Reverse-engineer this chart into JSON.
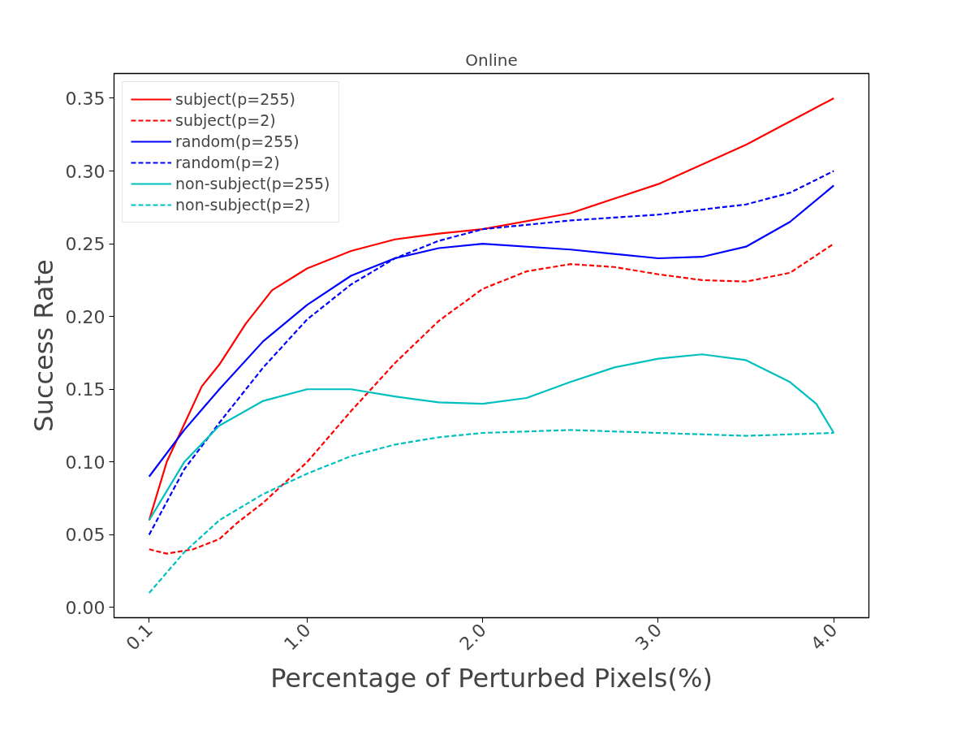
{
  "chart_data": {
    "type": "line",
    "title": "Online",
    "xlabel": "Percentage of Perturbed Pixels(%)",
    "ylabel": "Success Rate",
    "xlim": [
      -0.1,
      4.2
    ],
    "ylim": [
      -0.007,
      0.367
    ],
    "xticks": [
      0.1,
      {
        "value": 1,
        "label": "1.0"
      },
      {
        "value": 2,
        "label": "2.0"
      },
      {
        "value": 3,
        "label": "3.0"
      },
      {
        "value": 4,
        "label": "4.0"
      }
    ],
    "yticks": [
      {
        "value": 0,
        "label": "0.00"
      },
      0.05,
      {
        "value": 0.1,
        "label": "0.10"
      },
      0.15,
      {
        "value": 0.2,
        "label": "0.20"
      },
      0.25,
      {
        "value": 0.3,
        "label": "0.30"
      },
      0.35
    ],
    "grid": false,
    "legend": "top left",
    "series": [
      {
        "name": "subject(p=255)",
        "color": "#ff0000",
        "line_style": "solid",
        "x": [
          0.1,
          0.2,
          0.4,
          0.5,
          0.65,
          0.8,
          1.0,
          1.25,
          1.5,
          1.75,
          2.0,
          2.5,
          3.0,
          3.5,
          4.0
        ],
        "values": [
          0.06,
          0.1,
          0.152,
          0.167,
          0.195,
          0.218,
          0.233,
          0.245,
          0.253,
          0.257,
          0.26,
          0.271,
          0.291,
          0.318,
          0.35
        ]
      },
      {
        "name": "subject(p=2)",
        "color": "#ff0000",
        "line_style": "dashed",
        "x": [
          0.1,
          0.2,
          0.35,
          0.5,
          0.6,
          0.75,
          1.0,
          1.25,
          1.5,
          1.75,
          2.0,
          2.25,
          2.5,
          2.75,
          3.0,
          3.25,
          3.5,
          3.75,
          4.0
        ],
        "values": [
          0.04,
          0.037,
          0.04,
          0.047,
          0.058,
          0.072,
          0.1,
          0.135,
          0.168,
          0.197,
          0.219,
          0.231,
          0.236,
          0.234,
          0.229,
          0.225,
          0.224,
          0.23,
          0.25
        ]
      },
      {
        "name": "random(p=255)",
        "color": "#0000ff",
        "line_style": "solid",
        "x": [
          0.1,
          0.3,
          0.5,
          0.75,
          1.0,
          1.25,
          1.5,
          1.75,
          2.0,
          2.5,
          3.0,
          3.25,
          3.5,
          3.75,
          4.0
        ],
        "values": [
          0.09,
          0.122,
          0.15,
          0.183,
          0.208,
          0.228,
          0.24,
          0.247,
          0.25,
          0.246,
          0.24,
          0.241,
          0.248,
          0.265,
          0.29
        ]
      },
      {
        "name": "random(p=2)",
        "color": "#0000ff",
        "line_style": "dashed",
        "x": [
          0.1,
          0.3,
          0.5,
          0.75,
          1.0,
          1.25,
          1.5,
          1.75,
          2.0,
          2.5,
          3.0,
          3.5,
          3.75,
          4.0
        ],
        "values": [
          0.05,
          0.095,
          0.127,
          0.165,
          0.198,
          0.222,
          0.24,
          0.252,
          0.26,
          0.266,
          0.27,
          0.277,
          0.285,
          0.3
        ]
      },
      {
        "name": "non-subject(p=255)",
        "color": "#00bfbf",
        "line_style": "solid",
        "x": [
          0.1,
          0.3,
          0.5,
          0.75,
          1.0,
          1.25,
          1.5,
          1.75,
          2.0,
          2.25,
          2.5,
          2.75,
          3.0,
          3.25,
          3.5,
          3.75,
          3.9,
          4.0
        ],
        "values": [
          0.06,
          0.1,
          0.125,
          0.142,
          0.15,
          0.15,
          0.145,
          0.141,
          0.14,
          0.144,
          0.155,
          0.165,
          0.171,
          0.174,
          0.17,
          0.155,
          0.14,
          0.12
        ]
      },
      {
        "name": "non-subject(p=2)",
        "color": "#00bfbf",
        "line_style": "dashed",
        "x": [
          0.1,
          0.3,
          0.5,
          0.75,
          1.0,
          1.25,
          1.5,
          1.75,
          2.0,
          2.5,
          3.0,
          3.5,
          4.0
        ],
        "values": [
          0.01,
          0.038,
          0.06,
          0.078,
          0.092,
          0.104,
          0.112,
          0.117,
          0.12,
          0.122,
          0.12,
          0.118,
          0.12
        ]
      }
    ]
  }
}
